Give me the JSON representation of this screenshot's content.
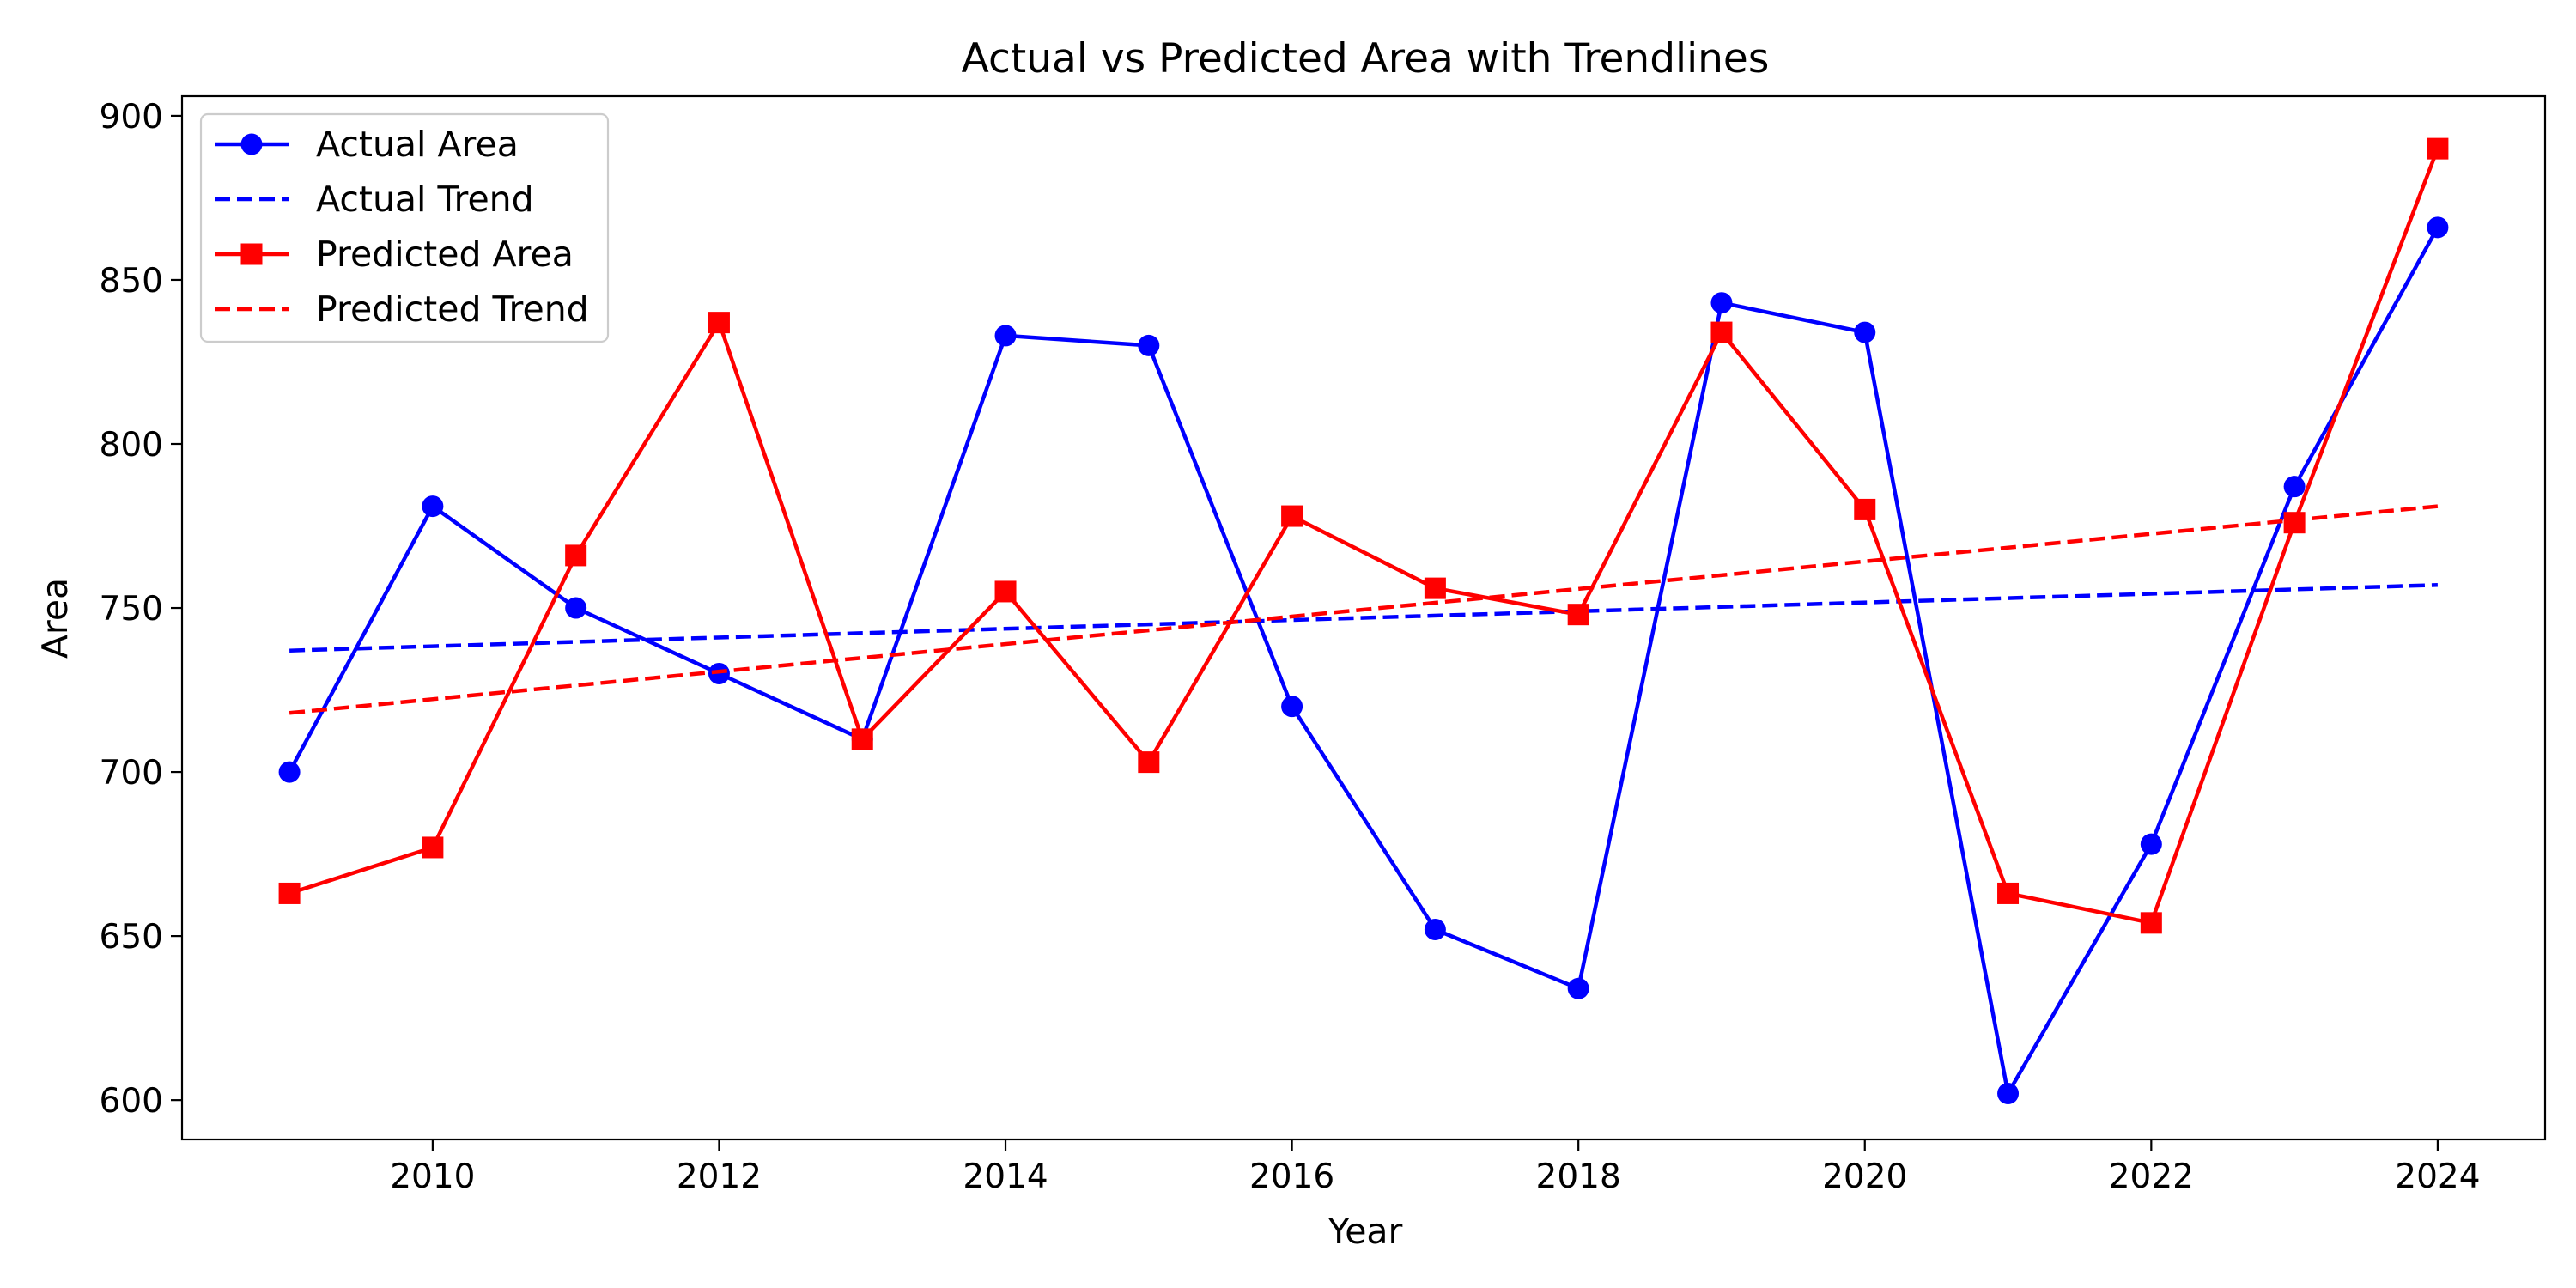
{
  "chart_data": {
    "type": "line",
    "title": "Actual vs Predicted Area with Trendlines",
    "xlabel": "Year",
    "ylabel": "Area",
    "xlim": [
      2008.25,
      2024.75
    ],
    "ylim": [
      588,
      906
    ],
    "x_ticks": [
      2010,
      2012,
      2014,
      2016,
      2018,
      2020,
      2022,
      2024
    ],
    "y_ticks": [
      600,
      650,
      700,
      750,
      800,
      850,
      900
    ],
    "grid": false,
    "legend_position": "top-left",
    "x": [
      2009,
      2010,
      2011,
      2012,
      2013,
      2014,
      2015,
      2016,
      2017,
      2018,
      2019,
      2020,
      2021,
      2022,
      2023,
      2024
    ],
    "series": [
      {
        "name": "Actual Area",
        "kind": "data",
        "marker": "circle",
        "line_style": "solid",
        "color": "#0000ff",
        "values": [
          700,
          781,
          750,
          730,
          710,
          833,
          830,
          720,
          652,
          634,
          843,
          834,
          602,
          678,
          787,
          866
        ]
      },
      {
        "name": "Actual Trend",
        "kind": "trend",
        "line_style": "dashed",
        "color": "#0000ff",
        "x": [
          2009,
          2024
        ],
        "values": [
          737,
          757
        ]
      },
      {
        "name": "Predicted Area",
        "kind": "data",
        "marker": "square",
        "line_style": "solid",
        "color": "#ff0000",
        "values": [
          663,
          677,
          766,
          837,
          710,
          755,
          703,
          778,
          756,
          748,
          834,
          780,
          663,
          654,
          776,
          890
        ]
      },
      {
        "name": "Predicted Trend",
        "kind": "trend",
        "line_style": "dashed",
        "color": "#ff0000",
        "x": [
          2009,
          2024
        ],
        "values": [
          718,
          781
        ]
      }
    ]
  }
}
